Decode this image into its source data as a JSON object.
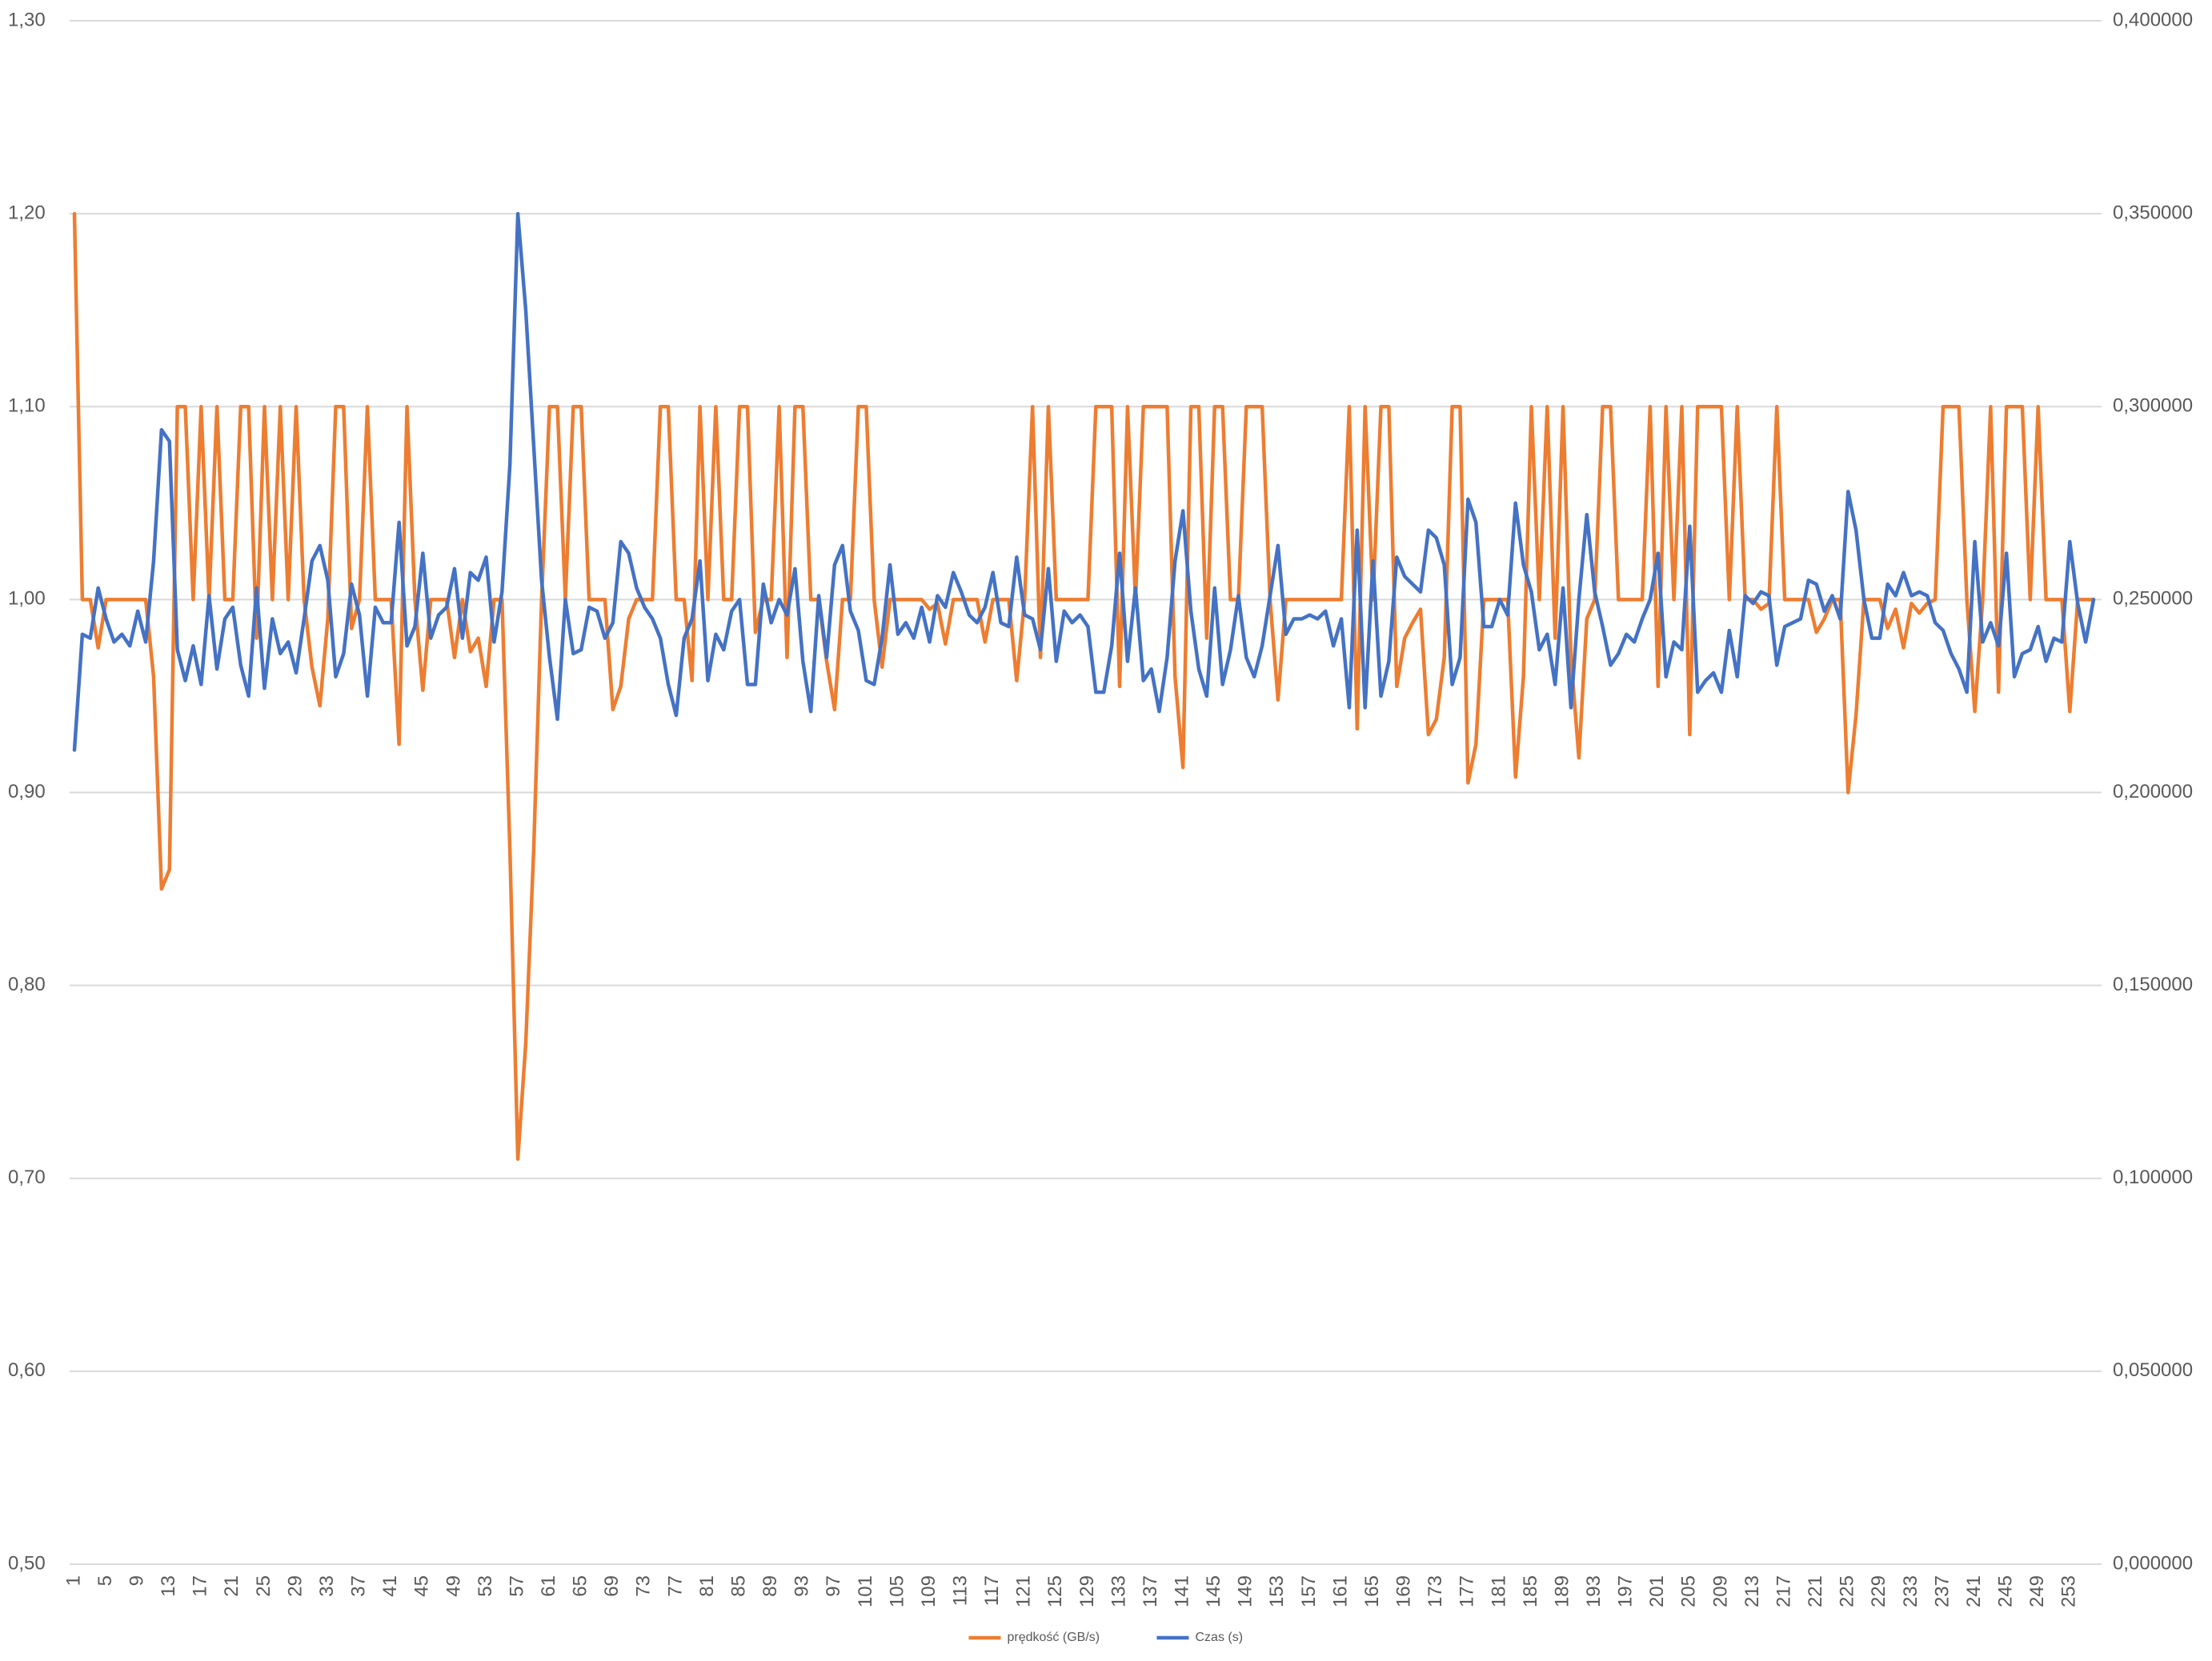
{
  "chart_data": {
    "type": "line",
    "categories": [
      1,
      null,
      null,
      null,
      5,
      null,
      null,
      null,
      9,
      null,
      null,
      null,
      13,
      null,
      null,
      null,
      17,
      null,
      null,
      null,
      21,
      null,
      null,
      null,
      25,
      null,
      null,
      null,
      29,
      null,
      null,
      null,
      33,
      null,
      null,
      null,
      37,
      null,
      null,
      null,
      41,
      null,
      null,
      null,
      45,
      null,
      null,
      null,
      49,
      null,
      null,
      null,
      53,
      null,
      null,
      null,
      57,
      null,
      null,
      null,
      61,
      null,
      null,
      null,
      65,
      null,
      null,
      null,
      69,
      null,
      null,
      null,
      73,
      null,
      null,
      null,
      77,
      null,
      null,
      null,
      81,
      null,
      null,
      null,
      85,
      null,
      null,
      null,
      89,
      null,
      null,
      null,
      93,
      null,
      null,
      null,
      97,
      null,
      null,
      null,
      101,
      null,
      null,
      null,
      105,
      null,
      null,
      null,
      109,
      null,
      null,
      null,
      113,
      null,
      null,
      null,
      117,
      null,
      null,
      null,
      121,
      null,
      null,
      null,
      125,
      null,
      null,
      null,
      129,
      null,
      null,
      null,
      133,
      null,
      null,
      null,
      137,
      null,
      null,
      null,
      141,
      null,
      null,
      null,
      145,
      null,
      null,
      null,
      149,
      null,
      null,
      null,
      153,
      null,
      null,
      null,
      157,
      null,
      null,
      null,
      161,
      null,
      null,
      null,
      165,
      null,
      null,
      null,
      169,
      null,
      null,
      null,
      173,
      null,
      null,
      null,
      177,
      null,
      null,
      null,
      181,
      null,
      null,
      null,
      185,
      null,
      null,
      null,
      189,
      null,
      null,
      null,
      193,
      null,
      null,
      null,
      197,
      null,
      null,
      null,
      201,
      null,
      null,
      null,
      205,
      null,
      null,
      null,
      209,
      null,
      null,
      null,
      213,
      null,
      null,
      null,
      217,
      null,
      null,
      null,
      221,
      null,
      null,
      null,
      225,
      null,
      null,
      null,
      229,
      null,
      null,
      null,
      233,
      null,
      null,
      null,
      237,
      null,
      null,
      null,
      241,
      null,
      null,
      null,
      245,
      null,
      null,
      null,
      249,
      null,
      null,
      null,
      253,
      null,
      null,
      null
    ],
    "series": [
      {
        "name": "prędkość (GB/s)",
        "color": "#ED7D31",
        "axis": "y",
        "values": [
          1.2,
          1.0,
          1.0,
          0.975,
          1.0,
          1.0,
          1.0,
          1.0,
          1.0,
          1.0,
          0.96,
          0.85,
          0.86,
          1.1,
          1.1,
          1.0,
          1.1,
          1.0,
          1.1,
          1.0,
          1.0,
          1.1,
          1.1,
          0.98,
          1.1,
          1.0,
          1.1,
          1.0,
          1.1,
          1.0,
          0.965,
          0.945,
          0.99,
          1.1,
          1.1,
          0.985,
          1.0,
          1.1,
          1.0,
          1.0,
          1.0,
          0.925,
          1.1,
          1.0,
          0.953,
          1.0,
          1.0,
          1.0,
          0.97,
          1.0,
          0.973,
          0.98,
          0.955,
          1.0,
          1.0,
          0.87,
          0.71,
          0.77,
          0.87,
          1.0,
          1.1,
          1.1,
          1.0,
          1.1,
          1.1,
          1.0,
          1.0,
          1.0,
          0.943,
          0.955,
          0.99,
          1.0,
          1.0,
          1.0,
          1.1,
          1.1,
          1.0,
          1.0,
          0.958,
          1.1,
          1.0,
          1.1,
          1.0,
          1.0,
          1.1,
          1.1,
          0.983,
          1.0,
          1.0,
          1.1,
          0.97,
          1.1,
          1.1,
          1.0,
          1.0,
          0.968,
          0.943,
          1.0,
          1.0,
          1.1,
          1.1,
          1.0,
          0.965,
          1.0,
          1.0,
          1.0,
          1.0,
          1.0,
          0.995,
          0.998,
          0.977,
          1.0,
          1.0,
          1.0,
          1.0,
          0.978,
          1.0,
          1.0,
          1.0,
          0.958,
          1.0,
          1.1,
          0.97,
          1.1,
          1.0,
          1.0,
          1.0,
          1.0,
          1.0,
          1.1,
          1.1,
          1.1,
          0.955,
          1.1,
          1.0,
          1.1,
          1.1,
          1.1,
          1.1,
          0.96,
          0.913,
          1.1,
          1.1,
          0.98,
          1.1,
          1.1,
          1.0,
          1.0,
          1.1,
          1.1,
          1.1,
          1.0,
          0.948,
          1.0,
          1.0,
          1.0,
          1.0,
          1.0,
          1.0,
          1.0,
          1.0,
          1.1,
          0.933,
          1.1,
          1.0,
          1.1,
          1.1,
          0.955,
          0.98,
          0.988,
          0.995,
          0.93,
          0.938,
          0.97,
          1.1,
          1.1,
          0.905,
          0.925,
          1.0,
          1.0,
          1.0,
          1.0,
          0.908,
          0.96,
          1.1,
          1.0,
          1.1,
          0.98,
          1.1,
          0.97,
          0.918,
          0.99,
          1.0,
          1.1,
          1.1,
          1.0,
          1.0,
          1.0,
          1.0,
          1.1,
          0.955,
          1.1,
          1.0,
          1.1,
          0.93,
          1.1,
          1.1,
          1.1,
          1.1,
          1.0,
          1.1,
          1.0,
          1.0,
          0.995,
          0.998,
          1.1,
          1.0,
          1.0,
          1.0,
          1.0,
          0.983,
          0.99,
          1.0,
          1.0,
          0.9,
          0.94,
          1.0,
          1.0,
          1.0,
          0.985,
          0.995,
          0.975,
          0.998,
          0.993,
          0.998,
          1.0,
          1.1,
          1.1,
          1.1,
          1.0,
          0.942,
          1.0,
          1.1,
          0.952,
          1.1,
          1.1,
          1.1,
          1.0,
          1.1,
          1.0,
          1.0,
          1.0,
          0.942,
          1.0,
          1.0,
          1.0
        ]
      },
      {
        "name": "Czas (s)",
        "color": "#4472C4",
        "axis": "y2",
        "values": [
          0.211,
          0.241,
          0.24,
          0.253,
          0.245,
          0.239,
          0.241,
          0.238,
          0.247,
          0.239,
          0.26,
          0.294,
          0.291,
          0.237,
          0.229,
          0.238,
          0.228,
          0.251,
          0.232,
          0.245,
          0.248,
          0.233,
          0.225,
          0.253,
          0.227,
          0.245,
          0.236,
          0.239,
          0.231,
          0.245,
          0.26,
          0.264,
          0.255,
          0.23,
          0.236,
          0.254,
          0.246,
          0.225,
          0.248,
          0.244,
          0.244,
          0.27,
          0.238,
          0.243,
          0.262,
          0.24,
          0.246,
          0.248,
          0.258,
          0.24,
          0.257,
          0.255,
          0.261,
          0.239,
          0.252,
          0.285,
          0.35,
          0.325,
          0.29,
          0.255,
          0.235,
          0.219,
          0.25,
          0.236,
          0.237,
          0.248,
          0.247,
          0.24,
          0.244,
          0.265,
          0.262,
          0.253,
          0.248,
          0.245,
          0.24,
          0.228,
          0.22,
          0.24,
          0.245,
          0.26,
          0.229,
          0.241,
          0.237,
          0.247,
          0.25,
          0.228,
          0.228,
          0.254,
          0.244,
          0.25,
          0.246,
          0.258,
          0.234,
          0.221,
          0.251,
          0.235,
          0.259,
          0.264,
          0.247,
          0.242,
          0.229,
          0.228,
          0.24,
          0.259,
          0.241,
          0.244,
          0.24,
          0.248,
          0.239,
          0.251,
          0.248,
          0.257,
          0.252,
          0.246,
          0.244,
          0.248,
          0.257,
          0.244,
          0.243,
          0.261,
          0.246,
          0.245,
          0.237,
          0.258,
          0.234,
          0.247,
          0.244,
          0.246,
          0.243,
          0.226,
          0.226,
          0.238,
          0.262,
          0.234,
          0.253,
          0.229,
          0.232,
          0.221,
          0.235,
          0.26,
          0.273,
          0.247,
          0.232,
          0.225,
          0.253,
          0.228,
          0.237,
          0.251,
          0.235,
          0.23,
          0.238,
          0.251,
          0.264,
          0.241,
          0.245,
          0.245,
          0.246,
          0.245,
          0.247,
          0.238,
          0.245,
          0.222,
          0.268,
          0.222,
          0.26,
          0.225,
          0.234,
          0.261,
          0.256,
          0.254,
          0.252,
          0.268,
          0.266,
          0.259,
          0.228,
          0.235,
          0.276,
          0.27,
          0.243,
          0.243,
          0.25,
          0.246,
          0.275,
          0.259,
          0.252,
          0.237,
          0.241,
          0.228,
          0.253,
          0.222,
          0.25,
          0.272,
          0.252,
          0.243,
          0.233,
          0.236,
          0.241,
          0.239,
          0.245,
          0.25,
          0.262,
          0.23,
          0.239,
          0.237,
          0.269,
          0.226,
          0.229,
          0.231,
          0.226,
          0.242,
          0.23,
          0.251,
          0.249,
          0.252,
          0.251,
          0.233,
          0.243,
          0.244,
          0.245,
          0.255,
          0.254,
          0.247,
          0.251,
          0.245,
          0.278,
          0.268,
          0.25,
          0.24,
          0.24,
          0.254,
          0.251,
          0.257,
          0.251,
          0.252,
          0.251,
          0.244,
          0.242,
          0.236,
          0.232,
          0.226,
          0.265,
          0.239,
          0.244,
          0.238,
          0.262,
          0.23,
          0.236,
          0.237,
          0.243,
          0.234,
          0.24,
          0.239,
          0.265,
          0.249,
          0.239,
          0.25
        ]
      }
    ],
    "ylim": [
      0.5,
      1.3
    ],
    "yticks": [
      {
        "value": 0.5,
        "label": "0,50"
      },
      {
        "value": 0.6,
        "label": "0,60"
      },
      {
        "value": 0.7,
        "label": "0,70"
      },
      {
        "value": 0.8,
        "label": "0,80"
      },
      {
        "value": 0.9,
        "label": "0,90"
      },
      {
        "value": 1.0,
        "label": "1,00"
      },
      {
        "value": 1.1,
        "label": "1,10"
      },
      {
        "value": 1.2,
        "label": "1,20"
      },
      {
        "value": 1.3,
        "label": "1,30"
      }
    ],
    "y2lim": [
      0,
      0.4
    ],
    "y2ticks": [
      {
        "value": 0,
        "label": "0,000000"
      },
      {
        "value": 0.05,
        "label": "0,050000"
      },
      {
        "value": 0.1,
        "label": "0,100000"
      },
      {
        "value": 0.15,
        "label": "0,150000"
      },
      {
        "value": 0.2,
        "label": "0,200000"
      },
      {
        "value": 0.25,
        "label": "0,250000"
      },
      {
        "value": 0.3,
        "label": "0,300000"
      },
      {
        "value": 0.35,
        "label": "0,350000"
      },
      {
        "value": 0.4,
        "label": "0,400000"
      }
    ],
    "grid": true,
    "legend": "bottom"
  }
}
